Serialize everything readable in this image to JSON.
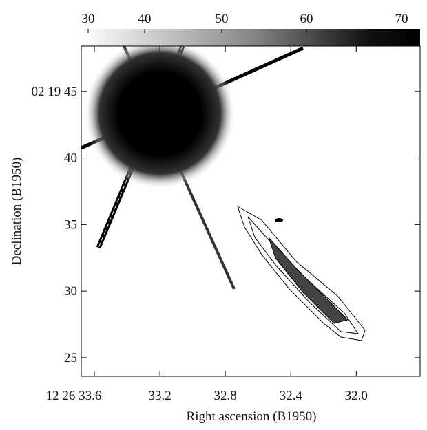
{
  "chart_data": {
    "type": "image",
    "xlabel": "Right ascension (B1950)",
    "ylabel": "Declination (B1950)",
    "xlim": [
      33.68,
      31.61
    ],
    "xticks": [
      {
        "value": 33.6,
        "label": "12 26 33.6"
      },
      33.2,
      32.8,
      32.4,
      {
        "value": 32,
        "label": "32.0"
      }
    ],
    "ylim": [
      23.6,
      48.4
    ],
    "yticks": [
      {
        "value": 45,
        "label": "02 19 45"
      },
      40,
      35,
      30,
      25
    ],
    "colorbar_ticks": [
      30,
      40,
      50,
      60,
      70
    ]
  }
}
